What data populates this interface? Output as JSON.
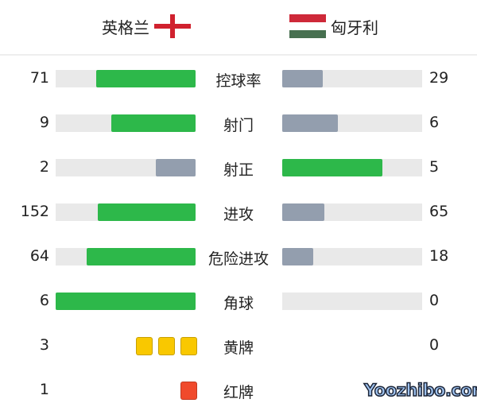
{
  "home": {
    "name": "英格兰",
    "flag": "england-flag"
  },
  "away": {
    "name": "匈牙利",
    "flag": "hungary-flag"
  },
  "colors": {
    "winner": "#2db84a",
    "loser": "#939eae",
    "track": "#e9e9e9",
    "yellow": "#f9c800",
    "red": "#f04a2c",
    "hun_red": "#ce2939",
    "hun_green": "#477050"
  },
  "stats": [
    {
      "label": "控球率",
      "home": "71",
      "away": "29"
    },
    {
      "label": "射门",
      "home": "9",
      "away": "6"
    },
    {
      "label": "射正",
      "home": "2",
      "away": "5"
    },
    {
      "label": "进攻",
      "home": "152",
      "away": "65"
    },
    {
      "label": "危险进攻",
      "home": "64",
      "away": "18"
    },
    {
      "label": "角球",
      "home": "6",
      "away": "0"
    }
  ],
  "cards": [
    {
      "label": "黄牌",
      "home": "3",
      "away": "0",
      "type": "yellow"
    },
    {
      "label": "红牌",
      "home": "1",
      "away": "",
      "type": "red"
    }
  ],
  "watermark": "Yoozhibo.com"
}
